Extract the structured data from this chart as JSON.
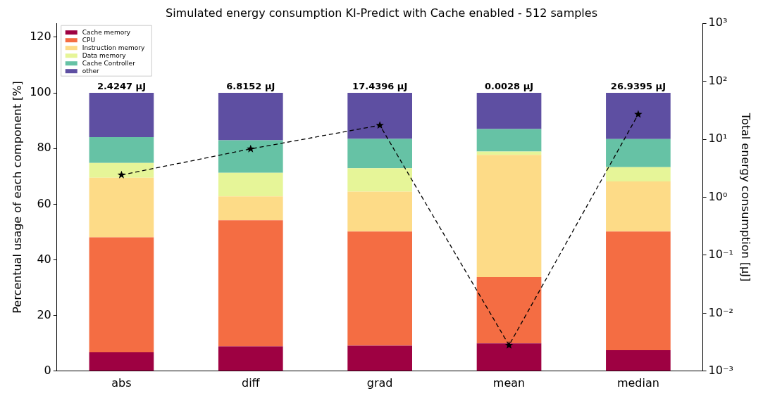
{
  "chart_data": {
    "type": "bar",
    "title": "Simulated energy consumption KI-Predict with Cache enabled - 512 samples",
    "ylabel": "Percentual usage of each component [%]",
    "y2label": "Total energy consumption [μJ]",
    "categories": [
      "abs",
      "diff",
      "grad",
      "mean",
      "median"
    ],
    "stacked": true,
    "series": [
      {
        "name": "Cache memory",
        "color": "#9e0142",
        "values": [
          6.8,
          8.9,
          9.2,
          10.0,
          7.5
        ]
      },
      {
        "name": "CPU",
        "color": "#f46d43",
        "values": [
          41.3,
          45.3,
          41.0,
          23.8,
          42.7
        ]
      },
      {
        "name": "Instruction memory",
        "color": "#fddb87",
        "values": [
          21.4,
          8.6,
          14.3,
          43.9,
          18.0
        ]
      },
      {
        "name": "Data memory",
        "color": "#e6f598",
        "values": [
          5.3,
          8.5,
          8.4,
          1.2,
          5.1
        ]
      },
      {
        "name": "Cache Controller",
        "color": "#66c2a5",
        "values": [
          9.3,
          11.7,
          10.6,
          8.1,
          10.1
        ]
      },
      {
        "name": "other",
        "color": "#5e4fa2",
        "values": [
          15.9,
          17.0,
          16.5,
          13.0,
          16.6
        ]
      },
      {
        "type": "line",
        "axis": "y2",
        "color": "#000000",
        "marker": "star",
        "line_style": "dashed",
        "values": [
          2.4247,
          6.8152,
          17.4396,
          0.0028,
          26.9395
        ]
      }
    ],
    "ylim": [
      0,
      125
    ],
    "yticks": [
      0,
      20,
      40,
      60,
      80,
      100,
      120
    ],
    "y2lim": [
      0.001,
      1000
    ],
    "y2ticks": [
      {
        "value": 0.001,
        "label": "10⁻³"
      },
      {
        "value": 0.01,
        "label": "10⁻²"
      },
      {
        "value": 0.1,
        "label": "10⁻¹"
      },
      {
        "value": 1,
        "label": "10⁰"
      },
      {
        "value": 10,
        "label": "10¹"
      },
      {
        "value": 100,
        "label": "10²"
      },
      {
        "value": 1000,
        "label": "10³"
      }
    ],
    "log": "y2",
    "grid": false,
    "legend": "top left",
    "annotations": [
      {
        "text": "2.4247 μJ",
        "x": "abs",
        "y": 100
      },
      {
        "text": "6.8152 μJ",
        "x": "diff",
        "y": 100
      },
      {
        "text": "17.4396 μJ",
        "x": "grad",
        "y": 100
      },
      {
        "text": "0.0028 μJ",
        "x": "mean",
        "y": 100
      },
      {
        "text": "26.9395 μJ",
        "x": "median",
        "y": 100
      }
    ]
  }
}
